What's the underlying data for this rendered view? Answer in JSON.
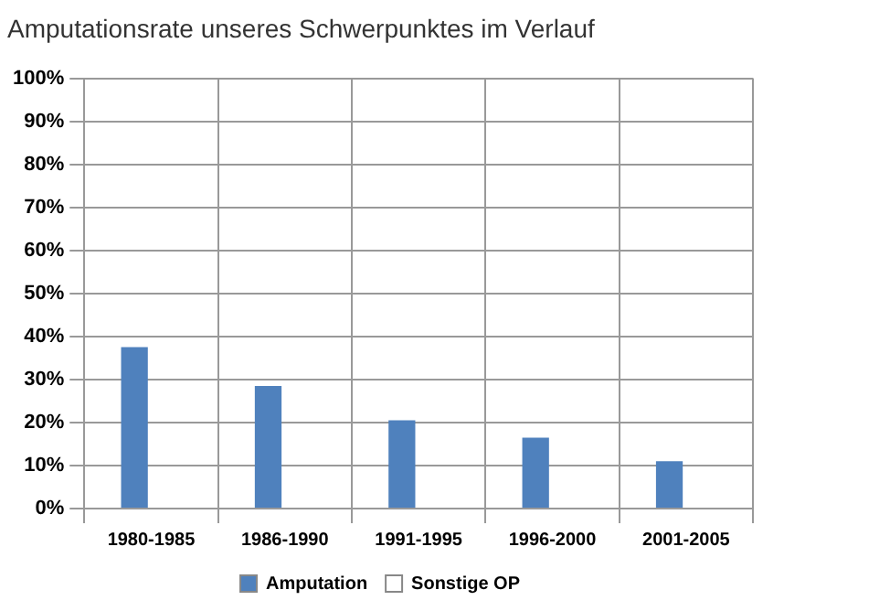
{
  "chart_data": {
    "type": "bar",
    "title": "Amputationsrate unseres Schwerpunktes im Verlauf",
    "categories": [
      "1980-1985",
      "1986-1990",
      "1991-1995",
      "1996-2000",
      "2001-2005"
    ],
    "series": [
      {
        "name": "Amputation",
        "color": "#4f81bd",
        "values": [
          37.5,
          28.5,
          20.5,
          16.5,
          11
        ]
      },
      {
        "name": "Sonstige OP",
        "color": "#ffffff",
        "values": [
          null,
          null,
          null,
          null,
          null
        ]
      }
    ],
    "ylim": [
      0,
      100
    ],
    "yticks": [
      {
        "value": 0,
        "label": "0%"
      },
      {
        "value": 10,
        "label": "10%"
      },
      {
        "value": 20,
        "label": "20%"
      },
      {
        "value": 30,
        "label": "30%"
      },
      {
        "value": 40,
        "label": "40%"
      },
      {
        "value": 50,
        "label": "50%"
      },
      {
        "value": 60,
        "label": "60%"
      },
      {
        "value": 70,
        "label": "70%"
      },
      {
        "value": 80,
        "label": "80%"
      },
      {
        "value": 90,
        "label": "90%"
      },
      {
        "value": 100,
        "label": "100%"
      }
    ],
    "grid": true,
    "legend": "bottom"
  }
}
